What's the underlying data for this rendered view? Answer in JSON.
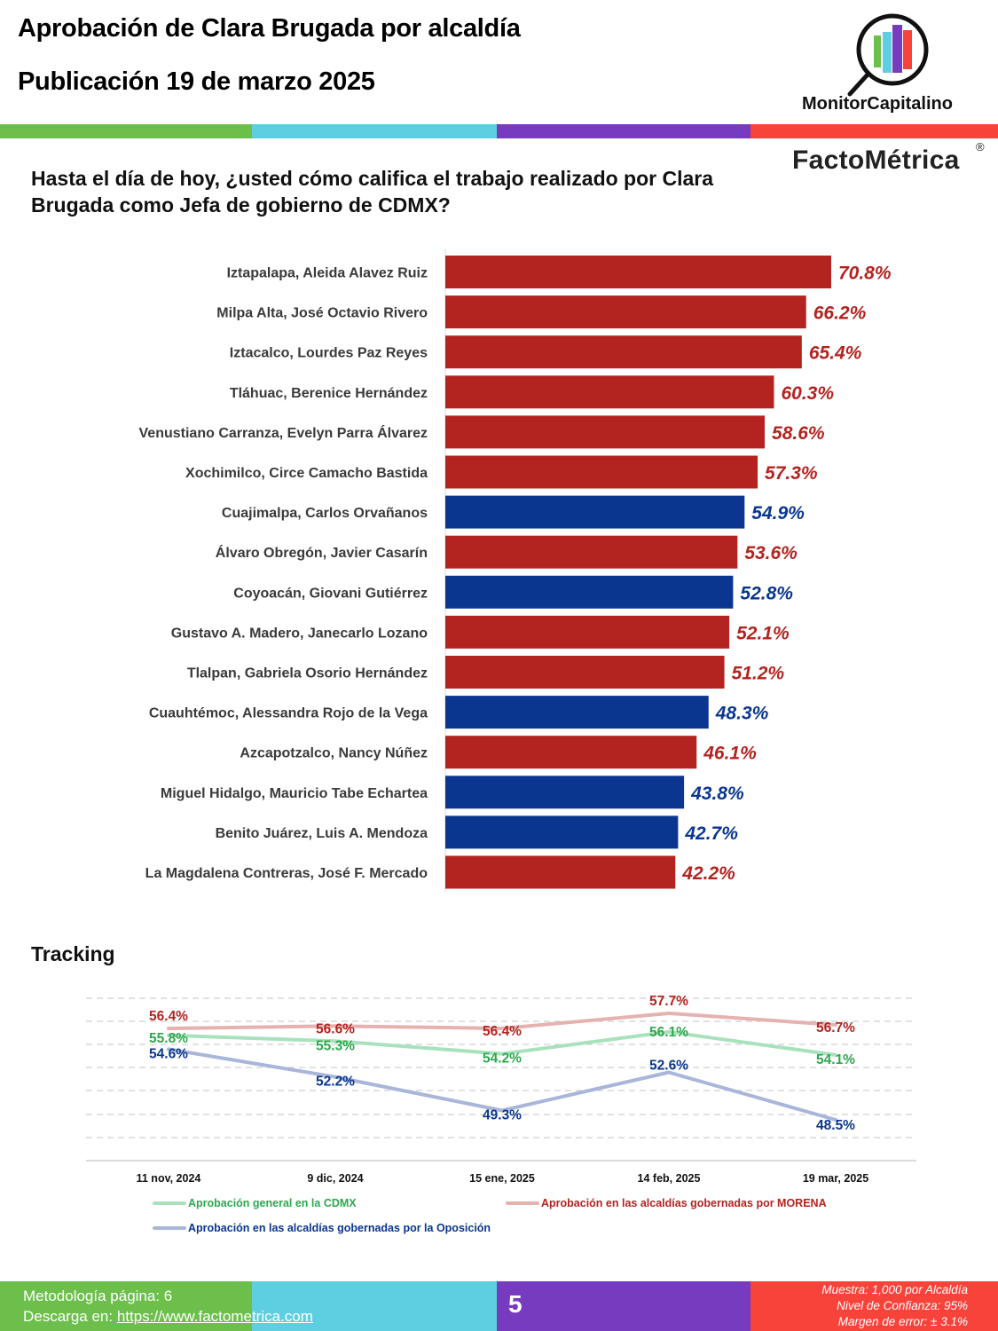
{
  "header": {
    "title_line1": "Aprobación de Clara Brugada por alcaldía",
    "title_line2": "Publicación 19 de marzo 2025",
    "brand_monitor": "MonitorCapitalino",
    "brand_facto": "FactoMétrica",
    "registered_mark": "®",
    "color_stripes": [
      "#6cbf4b",
      "#5ecfe0",
      "#773bbf",
      "#f8433a"
    ]
  },
  "question": "Hasta el día de hoy, ¿usted cómo califica el trabajo realizado por Clara Brugada como Jefa de gobierno de CDMX?",
  "colors": {
    "morena": "#b3231f",
    "oposicion": "#0a3690",
    "line_general": "#a8e2bd",
    "line_morena": "#e6b2b0",
    "line_oposicion": "#a9b6da",
    "label_general": "#2da84e",
    "label_morena": "#b3231f",
    "label_oposicion": "#0a3690"
  },
  "tracking_title": "Tracking",
  "chart_data": [
    {
      "type": "bar",
      "orientation": "horizontal",
      "title": "Hasta el día de hoy, ¿usted cómo califica el trabajo realizado por Clara Brugada como Jefa de gobierno de CDMX?",
      "categories": [
        "Iztapalapa, Aleida Alavez Ruiz",
        "Milpa Alta, José Octavio Rivero",
        "Iztacalco, Lourdes Paz Reyes",
        "Tláhuac, Berenice Hernández",
        "Venustiano Carranza, Evelyn Parra Álvarez",
        "Xochimilco, Circe Camacho Bastida",
        "Cuajimalpa, Carlos Orvañanos",
        "Álvaro Obregón, Javier Casarín",
        "Coyoacán, Giovani Gutiérrez",
        "Gustavo A. Madero, Janecarlo Lozano",
        "Tlalpan, Gabriela Osorio Hernández",
        "Cuauhtémoc, Alessandra Rojo de la Vega",
        "Azcapotzalco, Nancy Núñez",
        "Miguel Hidalgo, Mauricio Tabe Echartea",
        "Benito Juárez, Luis A. Mendoza",
        "La Magdalena Contreras, José F. Mercado"
      ],
      "values": [
        70.8,
        66.2,
        65.4,
        60.3,
        58.6,
        57.3,
        54.9,
        53.6,
        52.8,
        52.1,
        51.2,
        48.3,
        46.1,
        43.8,
        42.7,
        42.2
      ],
      "value_labels": [
        "70.8%",
        "66.2%",
        "65.4%",
        "60.3%",
        "58.6%",
        "57.3%",
        "54.9%",
        "53.6%",
        "52.8%",
        "52.1%",
        "51.2%",
        "48.3%",
        "46.1%",
        "43.8%",
        "42.7%",
        "42.2%"
      ],
      "party": [
        "morena",
        "morena",
        "morena",
        "morena",
        "morena",
        "morena",
        "oposicion",
        "morena",
        "oposicion",
        "morena",
        "morena",
        "oposicion",
        "morena",
        "oposicion",
        "oposicion",
        "morena"
      ],
      "xlim": [
        0,
        100
      ],
      "grid": false
    },
    {
      "type": "line",
      "title": "Tracking",
      "x": [
        "11 nov, 2024",
        "9 dic, 2024",
        "15 ene, 2025",
        "14 feb, 2025",
        "19 mar, 2025"
      ],
      "series": [
        {
          "name": "Aprobación en las alcaldías gobernadas por MORENA",
          "key": "morena",
          "values": [
            56.4,
            56.6,
            56.4,
            57.7,
            56.7
          ],
          "labels": [
            "56.4%",
            "56.6%",
            "56.4%",
            "57.7%",
            "56.7%"
          ]
        },
        {
          "name": "Aprobación general en la CDMX",
          "key": "general",
          "values": [
            55.8,
            55.3,
            54.2,
            56.1,
            54.1
          ],
          "labels": [
            "55.8%",
            "55.3%",
            "54.2%",
            "56.1%",
            "54.1%"
          ]
        },
        {
          "name": "Aprobación en las alcaldías gobernadas por la Oposición",
          "key": "oposicion",
          "values": [
            54.6,
            52.2,
            49.3,
            52.6,
            48.5
          ],
          "labels": [
            "54.6%",
            "52.2%",
            "49.3%",
            "52.6%",
            "48.5%"
          ]
        }
      ],
      "ylim": [
        46,
        58
      ],
      "grid": true,
      "legend_position": "bottom"
    }
  ],
  "legend": {
    "general": "Aprobación general en la CDMX",
    "morena": "Aprobación en las alcaldías gobernadas por MORENA",
    "oposicion": "Aprobación en las alcaldías gobernadas por la Oposición"
  },
  "footer": {
    "methodology": "Metodología página: 6",
    "download_prefix": "Descarga en: ",
    "download_link": "https://www.factometrica.com",
    "page_number": "5",
    "sample": "Muestra:  1,000 por Alcaldía",
    "confidence": "Nivel de Confianza: 95%",
    "margin": "Margen de error: ± 3.1%",
    "colors": [
      "#6cbf4b",
      "#5ecfe0",
      "#773bbf",
      "#f8433a"
    ]
  }
}
